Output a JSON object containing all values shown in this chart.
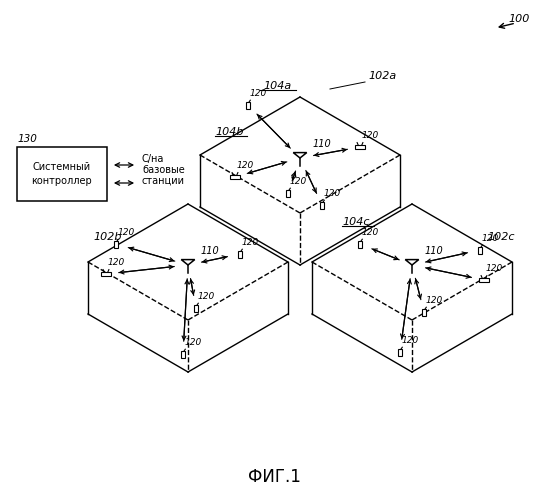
{
  "title": "ФИГ.1",
  "bg_color": "#ffffff",
  "cell_label_104a": "104a",
  "cell_label_102a": "102a",
  "cell_label_104b": "104b",
  "cell_label_102b": "102b",
  "cell_label_104c": "104c",
  "cell_label_102c": "102c",
  "bs_label": "110",
  "ut_label": "120",
  "system_label": "130",
  "ref_label": "100",
  "controller_line1": "Системный",
  "controller_line2": "контроллер",
  "link_text1": "С/на",
  "link_text2": "базовые",
  "link_text3": "станции"
}
